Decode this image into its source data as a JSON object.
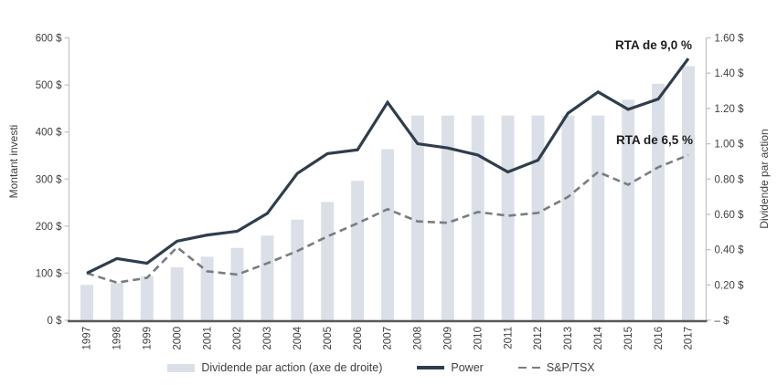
{
  "chart_data": {
    "type": "combo-bar-line",
    "categories": [
      "1997",
      "1998",
      "1999",
      "2000",
      "2001",
      "2002",
      "2003",
      "2004",
      "2005",
      "2006",
      "2007",
      "2008",
      "2009",
      "2010",
      "2011",
      "2012",
      "2013",
      "2014",
      "2015",
      "2016",
      "2017"
    ],
    "bar_series": {
      "name": "Dividende par action (axe de droite)",
      "axis": "right",
      "values": [
        0.2,
        0.21,
        0.25,
        0.3,
        0.36,
        0.41,
        0.48,
        0.57,
        0.67,
        0.79,
        0.97,
        1.16,
        1.16,
        1.16,
        1.16,
        1.16,
        1.16,
        1.16,
        1.25,
        1.34,
        1.44
      ]
    },
    "line_series": [
      {
        "name": "Power",
        "style": "solid",
        "axis": "left",
        "values": [
          100,
          131,
          121,
          168,
          181,
          189,
          227,
          312,
          354,
          362,
          463,
          375,
          366,
          351,
          315,
          340,
          440,
          485,
          448,
          470,
          556
        ]
      },
      {
        "name": "S&P/TSX",
        "style": "dashed",
        "axis": "left",
        "values": [
          100,
          80,
          90,
          155,
          104,
          97,
          121,
          147,
          178,
          206,
          236,
          210,
          207,
          230,
          222,
          228,
          262,
          315,
          288,
          325,
          351
        ]
      }
    ],
    "left_axis": {
      "title": "Montant investi",
      "min": 0,
      "max": 600,
      "tick_step": 100,
      "tick_labels": [
        "600 $",
        "500 $",
        "400 $",
        "300 $",
        "200 $",
        "100 $",
        "0 $"
      ]
    },
    "right_axis": {
      "title": "Dividende par action",
      "min": 0,
      "max": 1.6,
      "tick_step": 0.2,
      "tick_labels": [
        "1.60 $",
        "1.40 $",
        "1.20 $",
        "1.00 $",
        "0.80 $",
        "0.60 $",
        "0.40 $",
        "0.20 $",
        "– $"
      ]
    },
    "annotations": [
      {
        "text": "RTA de 9,0 %",
        "refers_to": "Power"
      },
      {
        "text": "RTA de 6,5 %",
        "refers_to": "S&P/TSX"
      }
    ],
    "legend": [
      {
        "label": "Dividende par action (axe de droite)",
        "swatch": "bar"
      },
      {
        "label": "Power",
        "swatch": "line-solid"
      },
      {
        "label": "S&P/TSX",
        "swatch": "line-dashed"
      }
    ],
    "colors": {
      "bar": "#dbe0e8",
      "power_line": "#2f3d4d",
      "sptsx_line": "#797d82",
      "axis_line": "#c2c4c6",
      "x_axis_line": "#58595b",
      "tick_text": "#3f3f3f",
      "annotation_text": "#1c1c1c"
    },
    "layout": {
      "gridlines": false,
      "legend_position": "bottom",
      "x_labels_rotated": true
    }
  }
}
